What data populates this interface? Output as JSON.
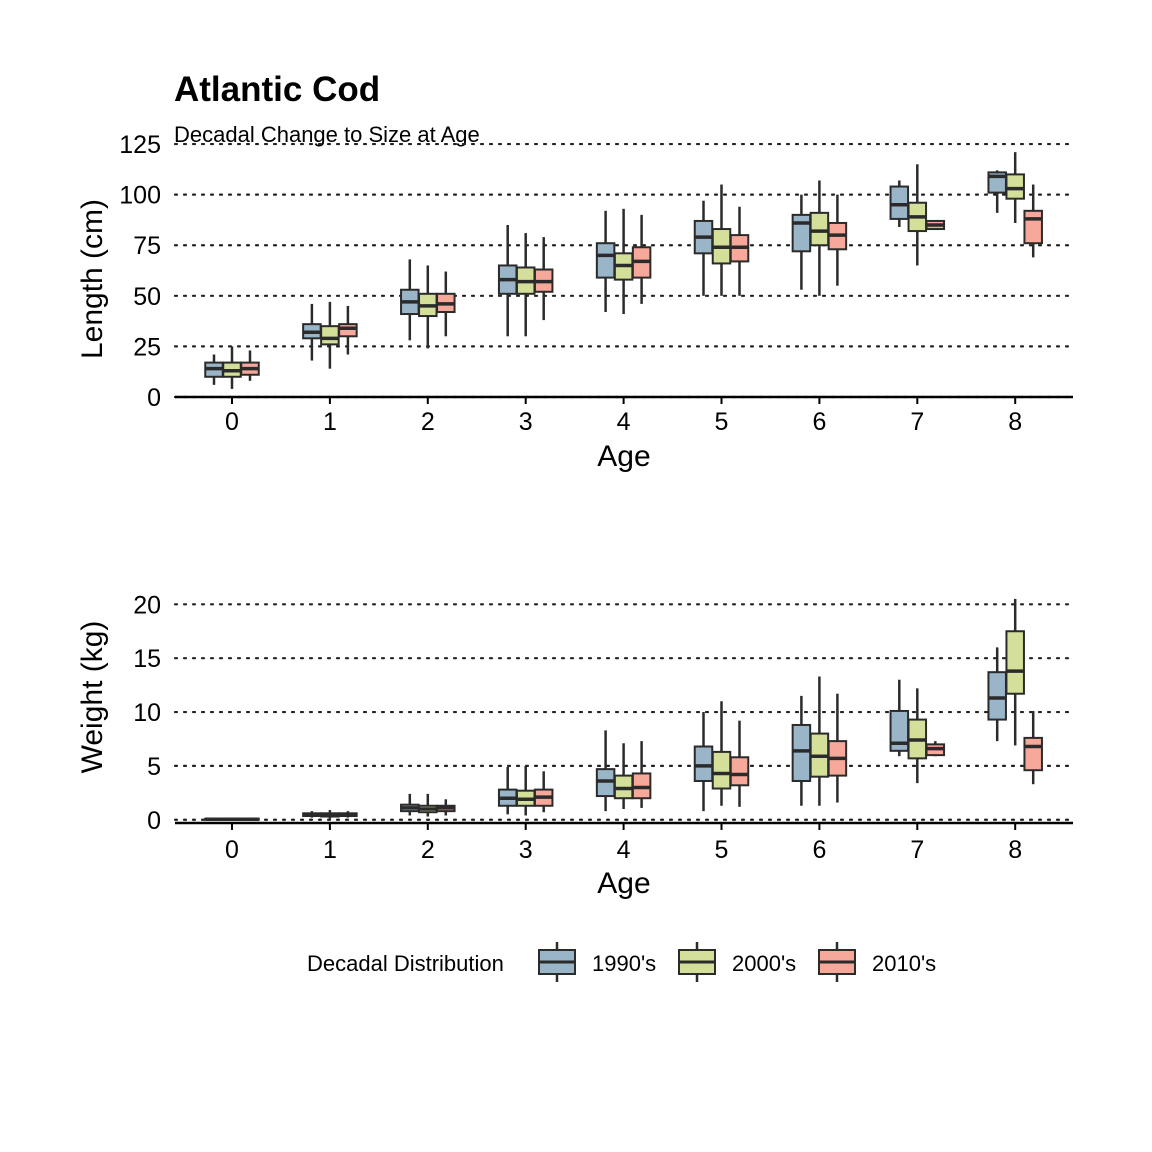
{
  "title": "Atlantic Cod",
  "subtitle": "Decadal Change to Size at Age",
  "legend": {
    "title": "Decadal Distribution",
    "items": [
      "1990's",
      "2000's",
      "2010's"
    ]
  },
  "colors": {
    "1990s": "#9ab5c8",
    "2000s": "#d4df9a",
    "2010s": "#f6a89a",
    "outline": "#2b2b2b",
    "grid": "#222222"
  },
  "chart_data": [
    {
      "type": "box",
      "xlabel": "Age",
      "ylabel": "Length (cm)",
      "ylim": [
        0,
        127
      ],
      "yticks": [
        0,
        25,
        50,
        75,
        100,
        125
      ],
      "categories": [
        "0",
        "1",
        "2",
        "3",
        "4",
        "5",
        "6",
        "7",
        "8"
      ],
      "grid": "horizontal dotted",
      "series": [
        {
          "name": "1990's",
          "boxes": [
            {
              "min": 6,
              "q1": 10,
              "median": 14,
              "q3": 17,
              "max": 21
            },
            {
              "min": 18,
              "q1": 29,
              "median": 32,
              "q3": 36,
              "max": 46
            },
            {
              "min": 28,
              "q1": 41,
              "median": 47,
              "q3": 53,
              "max": 68
            },
            {
              "min": 30,
              "q1": 51,
              "median": 58,
              "q3": 65,
              "max": 85
            },
            {
              "min": 42,
              "q1": 59,
              "median": 70,
              "q3": 76,
              "max": 92
            },
            {
              "min": 50,
              "q1": 71,
              "median": 79,
              "q3": 87,
              "max": 97
            },
            {
              "min": 53,
              "q1": 72,
              "median": 86,
              "q3": 90,
              "max": 100
            },
            {
              "min": 84,
              "q1": 88,
              "median": 95,
              "q3": 104,
              "max": 107
            },
            {
              "min": 91,
              "q1": 101,
              "median": 109,
              "q3": 111,
              "max": 112
            }
          ]
        },
        {
          "name": "2000's",
          "boxes": [
            {
              "min": 4,
              "q1": 10,
              "median": 13,
              "q3": 17,
              "max": 25
            },
            {
              "min": 14,
              "q1": 26,
              "median": 29,
              "q3": 35,
              "max": 47
            },
            {
              "min": 24,
              "q1": 40,
              "median": 45,
              "q3": 51,
              "max": 65
            },
            {
              "min": 30,
              "q1": 51,
              "median": 57,
              "q3": 64,
              "max": 81
            },
            {
              "min": 41,
              "q1": 58,
              "median": 65,
              "q3": 71,
              "max": 93
            },
            {
              "min": 50,
              "q1": 66,
              "median": 74,
              "q3": 83,
              "max": 105
            },
            {
              "min": 50,
              "q1": 75,
              "median": 82,
              "q3": 91,
              "max": 107
            },
            {
              "min": 65,
              "q1": 82,
              "median": 89,
              "q3": 96,
              "max": 115
            },
            {
              "min": 86,
              "q1": 98,
              "median": 103,
              "q3": 110,
              "max": 121
            }
          ]
        },
        {
          "name": "2010's",
          "boxes": [
            {
              "min": 8,
              "q1": 11,
              "median": 14,
              "q3": 17,
              "max": 23
            },
            {
              "min": 21,
              "q1": 30,
              "median": 34,
              "q3": 36,
              "max": 45
            },
            {
              "min": 30,
              "q1": 42,
              "median": 46,
              "q3": 51,
              "max": 62
            },
            {
              "min": 38,
              "q1": 52,
              "median": 57,
              "q3": 63,
              "max": 79
            },
            {
              "min": 46,
              "q1": 59,
              "median": 67,
              "q3": 74,
              "max": 90
            },
            {
              "min": 50,
              "q1": 67,
              "median": 74,
              "q3": 80,
              "max": 94
            },
            {
              "min": 55,
              "q1": 73,
              "median": 80,
              "q3": 86,
              "max": 100
            },
            {
              "min": 83,
              "q1": 83,
              "median": 85,
              "q3": 87,
              "max": 87
            },
            {
              "min": 69,
              "q1": 76,
              "median": 88,
              "q3": 92,
              "max": 105
            }
          ]
        }
      ]
    },
    {
      "type": "box",
      "xlabel": "Age",
      "ylabel": "Weight (kg)",
      "ylim": [
        -0.3,
        20.4
      ],
      "yticks": [
        0,
        5,
        10,
        15,
        20
      ],
      "categories": [
        "0",
        "1",
        "2",
        "3",
        "4",
        "5",
        "6",
        "7",
        "8"
      ],
      "grid": "horizontal dotted",
      "series": [
        {
          "name": "1990's",
          "boxes": [
            {
              "min": 0,
              "q1": 0,
              "median": 0.05,
              "q3": 0.1,
              "max": 0.15
            },
            {
              "min": 0.2,
              "q1": 0.35,
              "median": 0.45,
              "q3": 0.6,
              "max": 0.8
            },
            {
              "min": 0.4,
              "q1": 0.8,
              "median": 1.1,
              "q3": 1.4,
              "max": 2.4
            },
            {
              "min": 0.5,
              "q1": 1.3,
              "median": 2.0,
              "q3": 2.8,
              "max": 4.9
            },
            {
              "min": 0.8,
              "q1": 2.2,
              "median": 3.6,
              "q3": 4.7,
              "max": 8.3
            },
            {
              "min": 0.8,
              "q1": 3.6,
              "median": 5.0,
              "q3": 6.8,
              "max": 10.0
            },
            {
              "min": 1.3,
              "q1": 3.6,
              "median": 6.4,
              "q3": 8.8,
              "max": 11.5
            },
            {
              "min": 5.9,
              "q1": 6.4,
              "median": 7.1,
              "q3": 10.1,
              "max": 13.0
            },
            {
              "min": 7.3,
              "q1": 9.3,
              "median": 11.3,
              "q3": 13.7,
              "max": 16.0
            }
          ]
        },
        {
          "name": "2000's",
          "boxes": [
            {
              "min": 0,
              "q1": 0,
              "median": 0.05,
              "q3": 0.1,
              "max": 0.15
            },
            {
              "min": 0.1,
              "q1": 0.3,
              "median": 0.4,
              "q3": 0.6,
              "max": 0.9
            },
            {
              "min": 0.3,
              "q1": 0.7,
              "median": 1.0,
              "q3": 1.3,
              "max": 2.4
            },
            {
              "min": 0.4,
              "q1": 1.3,
              "median": 1.9,
              "q3": 2.7,
              "max": 5.0
            },
            {
              "min": 1.0,
              "q1": 2.0,
              "median": 2.9,
              "q3": 4.1,
              "max": 7.1
            },
            {
              "min": 1.3,
              "q1": 2.9,
              "median": 4.3,
              "q3": 6.3,
              "max": 11.0
            },
            {
              "min": 1.3,
              "q1": 4.0,
              "median": 5.9,
              "q3": 8.0,
              "max": 13.3
            },
            {
              "min": 3.4,
              "q1": 5.7,
              "median": 7.4,
              "q3": 9.3,
              "max": 12.2
            },
            {
              "min": 6.9,
              "q1": 11.7,
              "median": 13.8,
              "q3": 17.5,
              "max": 20.5
            }
          ]
        },
        {
          "name": "2010's",
          "boxes": [
            {
              "min": 0,
              "q1": 0,
              "median": 0.05,
              "q3": 0.1,
              "max": 0.15
            },
            {
              "min": 0.2,
              "q1": 0.35,
              "median": 0.45,
              "q3": 0.6,
              "max": 0.8
            },
            {
              "min": 0.4,
              "q1": 0.8,
              "median": 1.1,
              "q3": 1.3,
              "max": 1.9
            },
            {
              "min": 0.7,
              "q1": 1.3,
              "median": 2.1,
              "q3": 2.8,
              "max": 4.5
            },
            {
              "min": 1.1,
              "q1": 2.0,
              "median": 3.0,
              "q3": 4.3,
              "max": 7.3
            },
            {
              "min": 1.2,
              "q1": 3.2,
              "median": 4.2,
              "q3": 5.8,
              "max": 9.2
            },
            {
              "min": 1.6,
              "q1": 4.1,
              "median": 5.7,
              "q3": 7.3,
              "max": 11.7
            },
            {
              "min": 5.9,
              "q1": 6.0,
              "median": 6.6,
              "q3": 7.0,
              "max": 7.3
            },
            {
              "min": 3.3,
              "q1": 4.6,
              "median": 6.8,
              "q3": 7.6,
              "max": 10.1
            }
          ]
        }
      ]
    }
  ]
}
